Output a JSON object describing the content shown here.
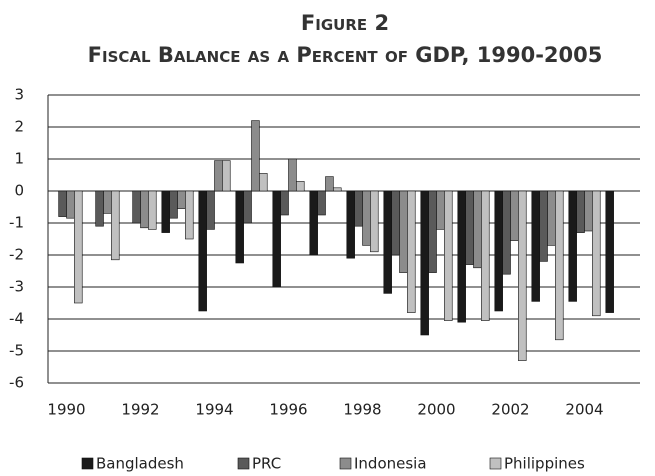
{
  "chart_data": {
    "type": "bar",
    "title": "Figure 2",
    "subtitle": "Fiscal Balance as a Percent of GDP, 1990-2005",
    "categories": [
      "1990",
      null,
      "1992",
      null,
      "1994",
      null,
      "1996",
      null,
      "1998",
      null,
      "2000",
      null,
      "2002",
      null,
      "2004",
      null
    ],
    "series": [
      {
        "name": "Bangladesh",
        "color": "#1a1a1a",
        "values": [
          null,
          null,
          null,
          -1.3,
          -3.75,
          -2.25,
          -3.0,
          -2.0,
          -2.1,
          -3.2,
          -4.5,
          -4.1,
          -3.75,
          -3.45,
          -3.45,
          -3.8
        ]
      },
      {
        "name": "PRC",
        "color": "#5a5a5a",
        "values": [
          -0.8,
          -1.1,
          -1.0,
          -0.85,
          -1.2,
          -1.0,
          -0.75,
          -0.75,
          -1.1,
          -2.0,
          -2.55,
          -2.3,
          -2.6,
          -2.2,
          -1.3,
          null
        ]
      },
      {
        "name": "Indonesia",
        "color": "#8c8c8c",
        "values": [
          -0.85,
          -0.7,
          -1.15,
          -0.55,
          0.95,
          2.2,
          1.0,
          0.45,
          -1.7,
          -2.55,
          -1.2,
          -2.4,
          -1.55,
          -1.7,
          -1.25,
          null
        ]
      },
      {
        "name": "Philippines",
        "color": "#c0c0c0",
        "values": [
          -3.5,
          -2.15,
          -1.2,
          -1.5,
          0.95,
          0.55,
          0.3,
          0.1,
          -1.9,
          -3.8,
          -4.05,
          -4.05,
          -5.3,
          -4.65,
          -3.9,
          null
        ]
      }
    ],
    "ylim": [
      -6,
      3
    ],
    "yticks": [
      -6,
      -5,
      -4,
      -3,
      -2,
      -1,
      0,
      1,
      2,
      3
    ],
    "grid": true,
    "legend": "bottom"
  }
}
